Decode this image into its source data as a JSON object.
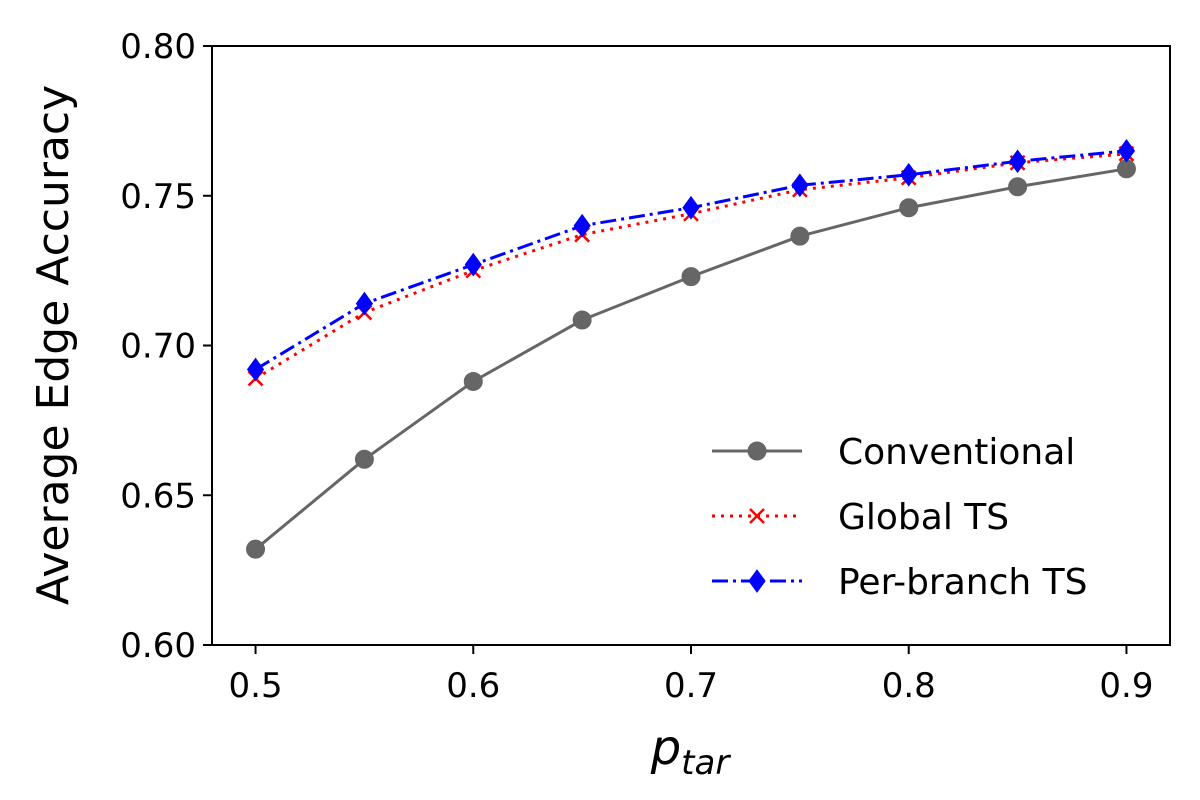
{
  "chart_data": {
    "type": "line",
    "title": "",
    "ylabel": "Average Edge Accuracy",
    "xlabel": {
      "main": "p",
      "subscript": "tar"
    },
    "xlim": [
      0.48,
      0.92
    ],
    "ylim": [
      0.6,
      0.8
    ],
    "xticks": [
      "0.5",
      "0.6",
      "0.7",
      "0.8",
      "0.9"
    ],
    "yticks": [
      "0.60",
      "0.65",
      "0.70",
      "0.75",
      "0.80"
    ],
    "grid": false,
    "legend_position": "lower-right",
    "x": [
      0.5,
      0.55,
      0.6,
      0.65,
      0.7,
      0.75,
      0.8,
      0.85,
      0.9
    ],
    "series": [
      {
        "name": "Conventional",
        "color": "#666666",
        "line_style": "solid",
        "marker": "circle",
        "values": [
          0.632,
          0.662,
          0.688,
          0.7085,
          0.723,
          0.7365,
          0.746,
          0.753,
          0.759
        ]
      },
      {
        "name": "Global TS",
        "color": "#ff0000",
        "line_style": "dotted",
        "marker": "x",
        "values": [
          0.689,
          0.711,
          0.725,
          0.737,
          0.744,
          0.752,
          0.756,
          0.761,
          0.764
        ]
      },
      {
        "name": "Per-branch TS",
        "color": "#0000ff",
        "line_style": "dash-dot",
        "marker": "diamond",
        "values": [
          0.692,
          0.714,
          0.727,
          0.74,
          0.746,
          0.7535,
          0.757,
          0.7615,
          0.765
        ]
      }
    ]
  }
}
